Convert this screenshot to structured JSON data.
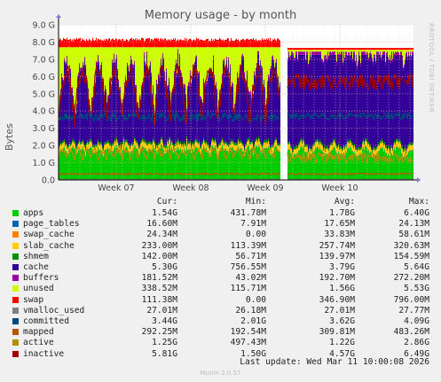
{
  "chart_data": {
    "type": "area",
    "title": "Memory usage - by month",
    "ylabel": "Bytes",
    "side_label": "RRDTOOL / TOBI OETIKER",
    "ylim": [
      0,
      9.0
    ],
    "y_ticks": [
      "0.0",
      "1.0 G",
      "2.0 G",
      "3.0 G",
      "4.0 G",
      "5.0 G",
      "6.0 G",
      "7.0 G",
      "8.0 G",
      "9.0 G"
    ],
    "x_ticks": [
      "Week 07",
      "Week 08",
      "Week 09",
      "Week 10"
    ],
    "grid": true,
    "legend_headers": [
      "Cur:",
      "Min:",
      "Avg:",
      "Max:"
    ],
    "series": [
      {
        "name": "apps",
        "color": "#00cc00",
        "cur": "1.54G",
        "min": "431.78M",
        "avg": "1.78G",
        "max": "6.40G"
      },
      {
        "name": "page_tables",
        "color": "#0066b3",
        "cur": "16.60M",
        "min": "7.91M",
        "avg": "17.65M",
        "max": "24.13M"
      },
      {
        "name": "swap_cache",
        "color": "#ff8000",
        "cur": "24.34M",
        "min": "0.00",
        "avg": "33.83M",
        "max": "58.61M"
      },
      {
        "name": "slab_cache",
        "color": "#ffcc00",
        "cur": "233.00M",
        "min": "113.39M",
        "avg": "257.74M",
        "max": "320.63M"
      },
      {
        "name": "shmem",
        "color": "#008f00",
        "cur": "142.00M",
        "min": "56.71M",
        "avg": "139.97M",
        "max": "154.59M"
      },
      {
        "name": "cache",
        "color": "#330099",
        "cur": "5.30G",
        "min": "756.55M",
        "avg": "3.79G",
        "max": "5.64G"
      },
      {
        "name": "buffers",
        "color": "#990099",
        "cur": "181.52M",
        "min": "43.02M",
        "avg": "192.70M",
        "max": "272.20M"
      },
      {
        "name": "unused",
        "color": "#ccff00",
        "cur": "338.52M",
        "min": "115.71M",
        "avg": "1.56G",
        "max": "5.53G"
      },
      {
        "name": "swap",
        "color": "#ff0000",
        "cur": "111.38M",
        "min": "0.00",
        "avg": "346.90M",
        "max": "796.00M"
      },
      {
        "name": "vmalloc_used",
        "color": "#808080",
        "cur": "27.01M",
        "min": "26.18M",
        "avg": "27.01M",
        "max": "27.77M"
      },
      {
        "name": "committed",
        "color": "#00487d",
        "cur": "3.44G",
        "min": "2.01G",
        "avg": "3.62G",
        "max": "4.09G"
      },
      {
        "name": "mapped",
        "color": "#b35a00",
        "cur": "292.25M",
        "min": "192.54M",
        "avg": "309.81M",
        "max": "483.26M"
      },
      {
        "name": "active",
        "color": "#b38f00",
        "cur": "1.25G",
        "min": "497.43M",
        "avg": "1.22G",
        "max": "2.86G"
      },
      {
        "name": "inactive",
        "color": "#a00000",
        "cur": "5.81G",
        "min": "1.50G",
        "avg": "4.57G",
        "max": "6.49G"
      }
    ],
    "last_update": "Last update: Wed Mar 11 10:00:08 2026",
    "footer": "Munin 2.0.57"
  }
}
